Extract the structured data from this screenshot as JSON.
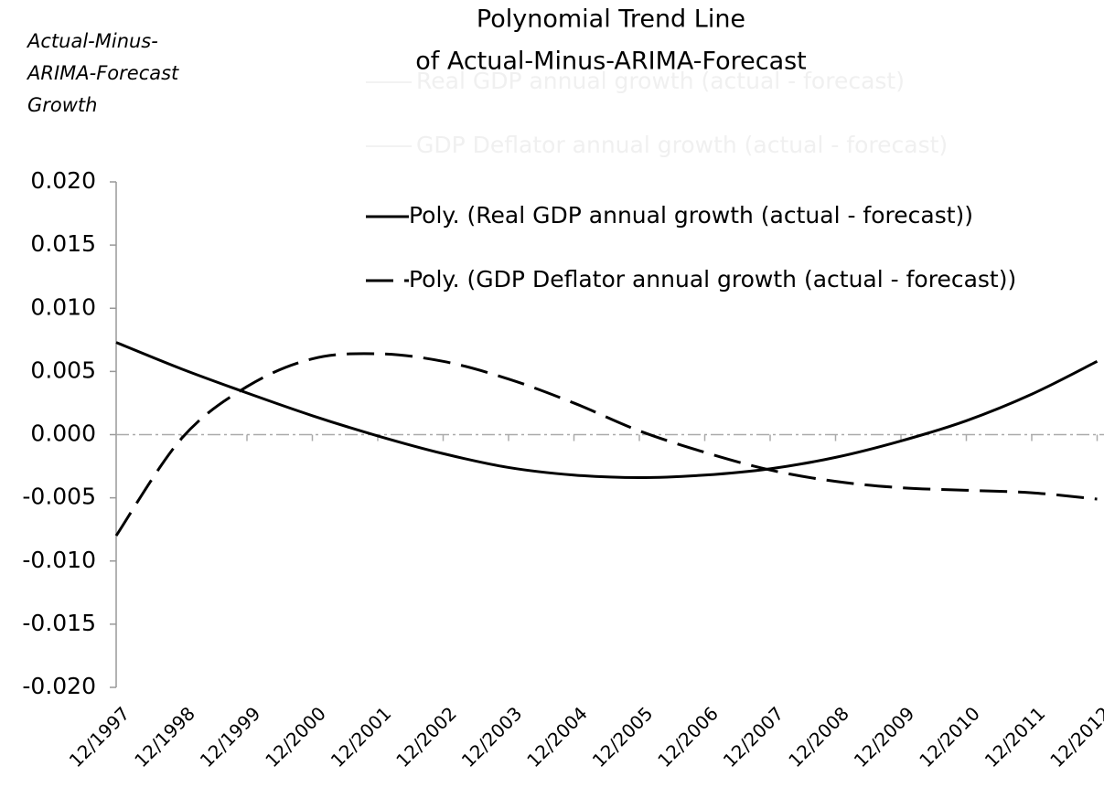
{
  "chart_data": {
    "type": "line",
    "title": [
      "Polynomial Trend Line",
      "of Actual-Minus-ARIMA-Forecast"
    ],
    "ylabel": [
      "Actual-Minus-",
      "ARIMA-Forecast",
      "Growth"
    ],
    "categories": [
      "12/1997",
      "12/1998",
      "12/1999",
      "12/2000",
      "12/2001",
      "12/2002",
      "12/2003",
      "12/2004",
      "12/2005",
      "12/2006",
      "12/2007",
      "12/2008",
      "12/2009",
      "12/2010",
      "12/2011",
      "12/2012"
    ],
    "faint_legend": [
      "Real GDP annual growth (actual - forecast)",
      "GDP Deflator annual growth (actual - forecast)"
    ],
    "series": [
      {
        "name": "Poly. (Real GDP annual growth (actual - forecast))",
        "color": "#000000",
        "dash": "solid",
        "values": [
          0.0073,
          0.0052,
          0.0033,
          0.0015,
          -0.0001,
          -0.0015,
          -0.0026,
          -0.0032,
          -0.0034,
          -0.0032,
          -0.0027,
          -0.0018,
          -0.0005,
          0.0011,
          0.0032,
          0.0058
        ]
      },
      {
        "name": "Poly. (GDP Deflator annual growth (actual - forecast))",
        "color": "#000000",
        "dash": "dashed",
        "values": [
          -0.008,
          -0.0003,
          0.0038,
          0.006,
          0.0064,
          0.0058,
          0.0044,
          0.0025,
          0.0003,
          -0.0014,
          -0.0028,
          -0.0037,
          -0.0042,
          -0.0044,
          -0.0046,
          -0.0051
        ]
      }
    ],
    "ylim": [
      -0.02,
      0.02
    ],
    "yticks": [
      {
        "value": -0.02,
        "label": "-0.020"
      },
      {
        "value": -0.015,
        "label": "-0.015"
      },
      {
        "value": -0.01,
        "label": "-0.010"
      },
      {
        "value": -0.005,
        "label": "-0.005"
      },
      {
        "value": 0,
        "label": "0.000"
      },
      {
        "value": 0.005,
        "label": "0.005"
      },
      {
        "value": 0.01,
        "label": "0.010"
      },
      {
        "value": 0.015,
        "label": "0.015"
      },
      {
        "value": 0.02,
        "label": "0.020"
      }
    ],
    "grid": false,
    "legend": "upper right"
  }
}
